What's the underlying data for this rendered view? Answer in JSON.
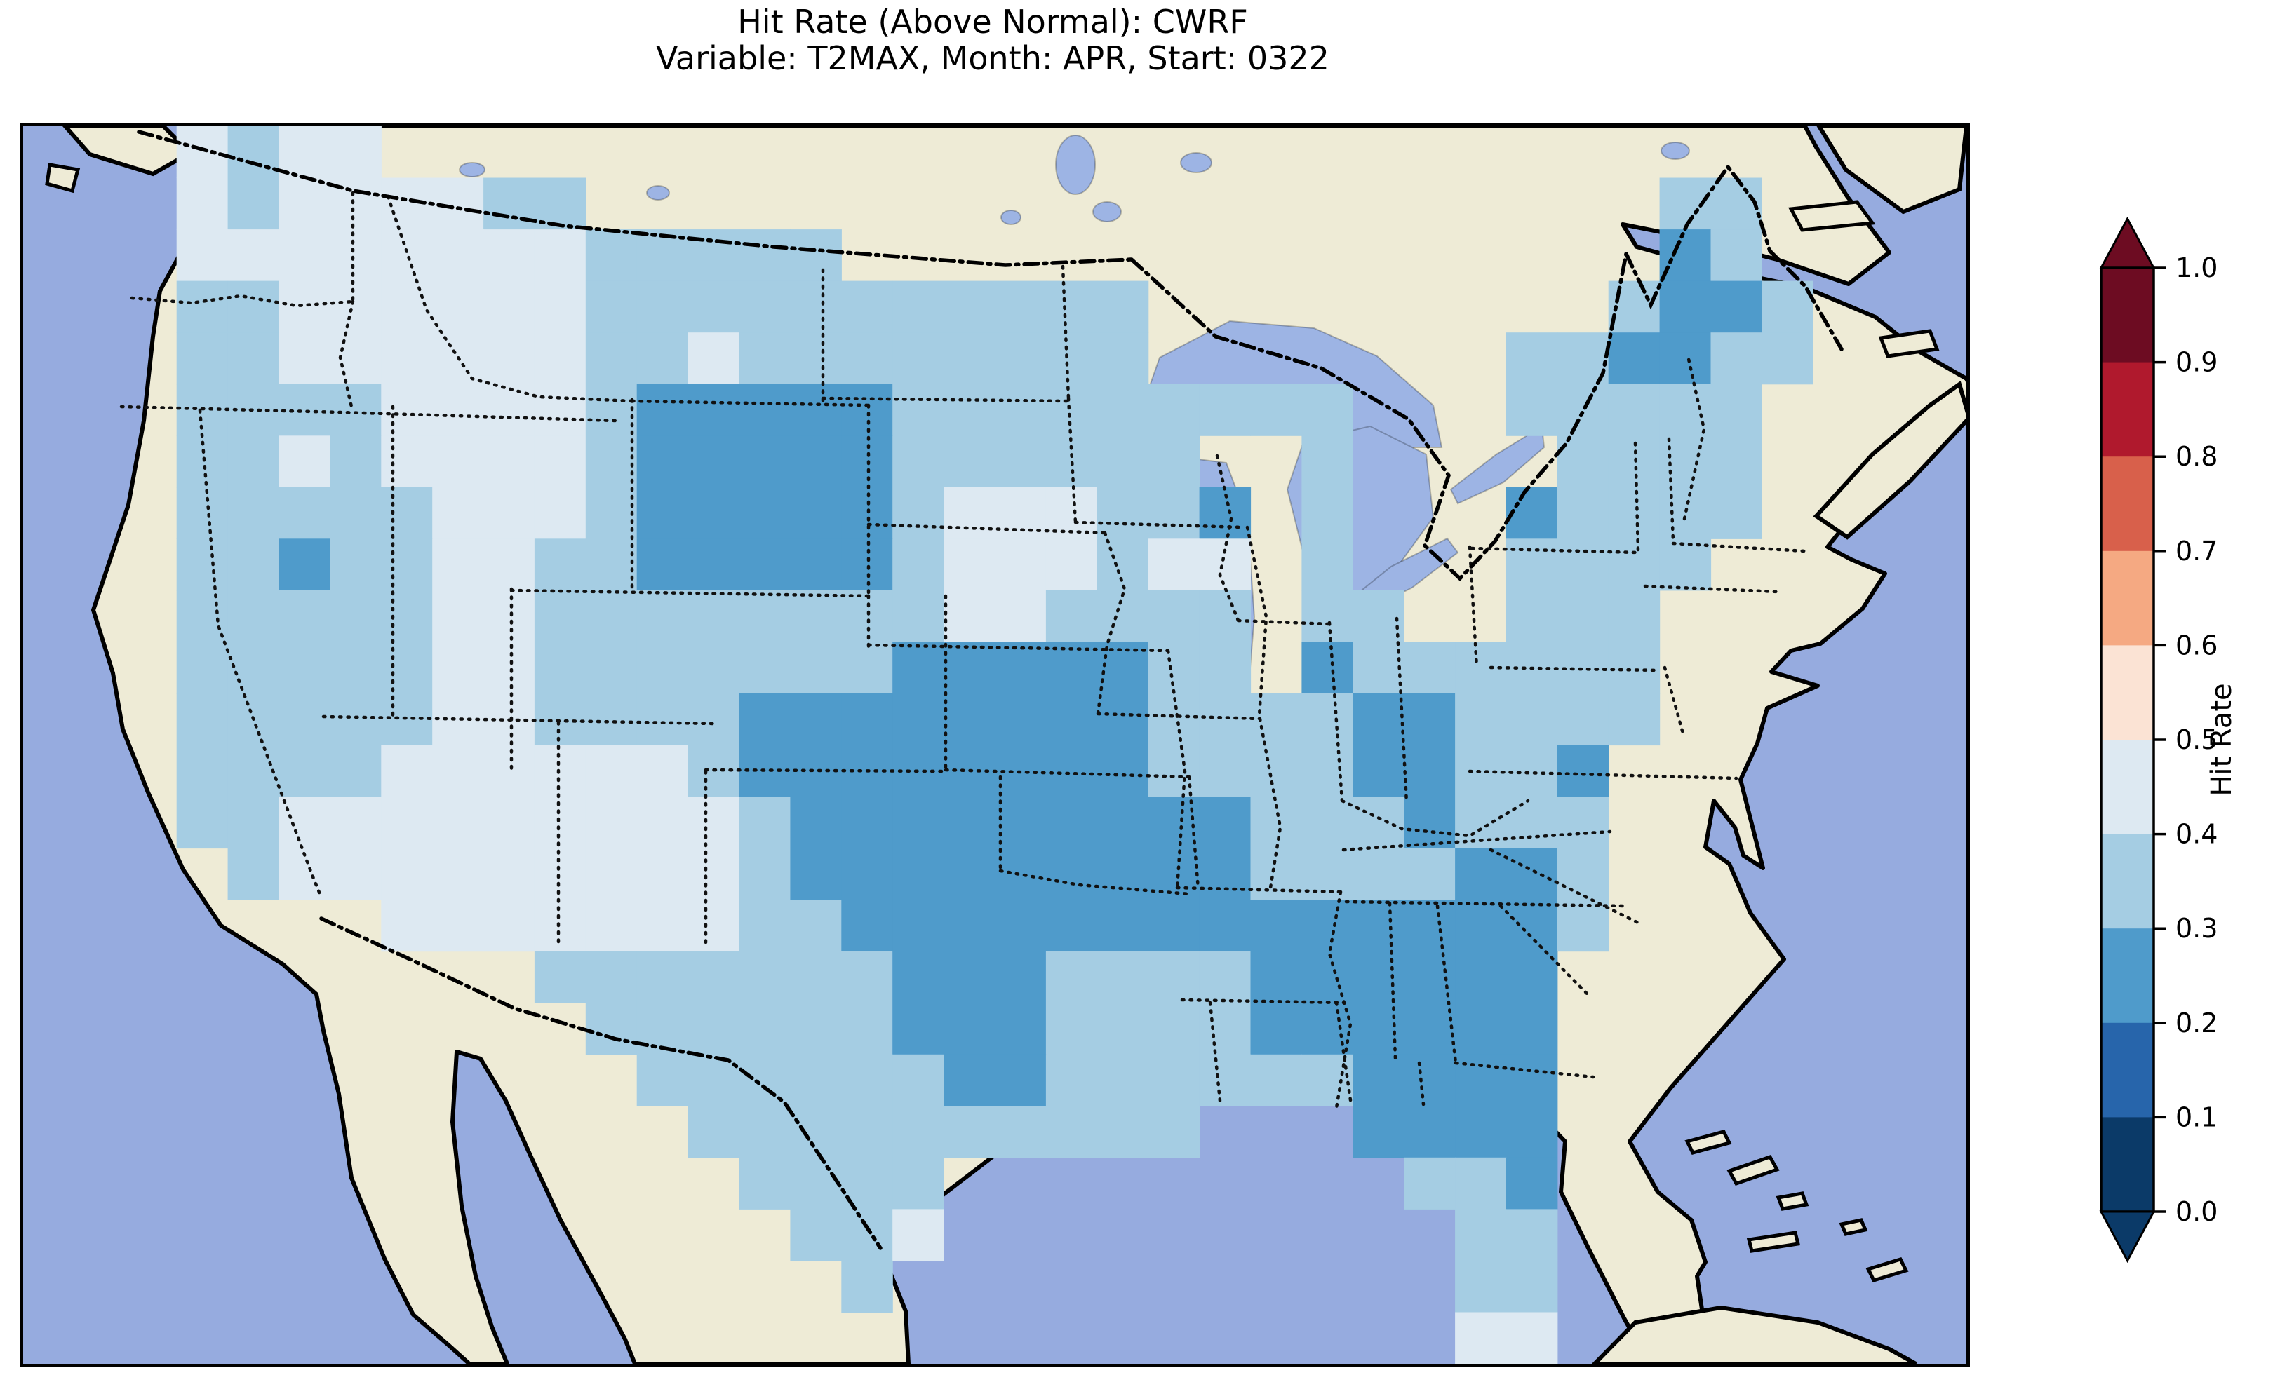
{
  "title": {
    "line1": "Hit Rate (Above Normal): CWRF",
    "line2": "Variable: T2MAX, Month: APR, Start: 0322"
  },
  "colorbar": {
    "label": "Hit Rate",
    "ticks": [
      "1.0",
      "0.9",
      "0.8",
      "0.7",
      "0.6",
      "0.5",
      "0.4",
      "0.3",
      "0.2",
      "0.1",
      "0.0"
    ],
    "bins": [
      {
        "range": "0.0-0.1",
        "color": "#0b3a68"
      },
      {
        "range": "0.1-0.2",
        "color": "#2765ab"
      },
      {
        "range": "0.2-0.3",
        "color": "#4f9bcb"
      },
      {
        "range": "0.3-0.4",
        "color": "#a5cde3"
      },
      {
        "range": "0.4-0.5",
        "color": "#dde9f2"
      },
      {
        "range": "0.5-0.6",
        "color": "#fbe3d4"
      },
      {
        "range": "0.6-0.7",
        "color": "#f5a982"
      },
      {
        "range": "0.7-0.8",
        "color": "#d8604b"
      },
      {
        "range": "0.8-0.9",
        "color": "#b0192d"
      },
      {
        "range": "0.9-1.0",
        "color": "#6d0c22"
      }
    ],
    "arrow_over_color": "#6d0c22",
    "arrow_under_color": "#0b3a68"
  },
  "map": {
    "colors": {
      "ocean": "#96abdf",
      "land": "#eeebd6",
      "lake": "#9db4e4",
      "coast": "#000000",
      "state_border": "#111111"
    },
    "cell_colors": {
      "2": "#4f9bcb",
      "3": "#a5cde3",
      "4": "#dde9f2"
    }
  },
  "chart_data": {
    "type": "heatmap",
    "title": "Hit Rate (Above Normal): CWRF",
    "subtitle": "Variable: T2MAX, Month: APR, Start: 0322",
    "colorbar_label": "Hit Rate",
    "colorbar_ticks": [
      1.0,
      0.9,
      0.8,
      0.7,
      0.6,
      0.5,
      0.4,
      0.3,
      0.2,
      0.1,
      0.0
    ],
    "value_range_shown": [
      0.2,
      0.5
    ],
    "legend": {
      "2": "hit rate 0.2-0.3",
      "3": "hit rate 0.3-0.4",
      "4": "hit rate 0.4-0.5",
      ".": "no data (outside CONUS)"
    },
    "grid_cols": 38,
    "grid_rows_count": 24,
    "grid_rows": [
      "...4344...............................",
      "...43444433.....................33....",
      "...4444444433333................23....",
      "...3344444433333333333.........3223...",
      "...3344444433433333333.......332233...",
      "...33334444322222333333333...33333....",
      "...33434444322222333333..3....3333....",
      "...333334443222223444332.3...23333....",
      "...332334433222223444344.3...3333.....",
      "...333334433333333443333.33..333......",
      "...333334433333332222233.2333333......",
      "...33333443333222222223333223333......",
      "...3333444444322222222333322332.......",
      "...3344444444432222222223332333.......",
      "....344444444432222222223333223.......",
      ".......444444433222222222222223.......",
      "..........33333332223333222222........",
      "...........3333332223333222222........",
      "............333333223333332222........",
      ".............3333333333...2222........",
      "..............3333.........332........",
      "...............334..........33........",
      "................3...........33........",
      "............................44........"
    ]
  }
}
